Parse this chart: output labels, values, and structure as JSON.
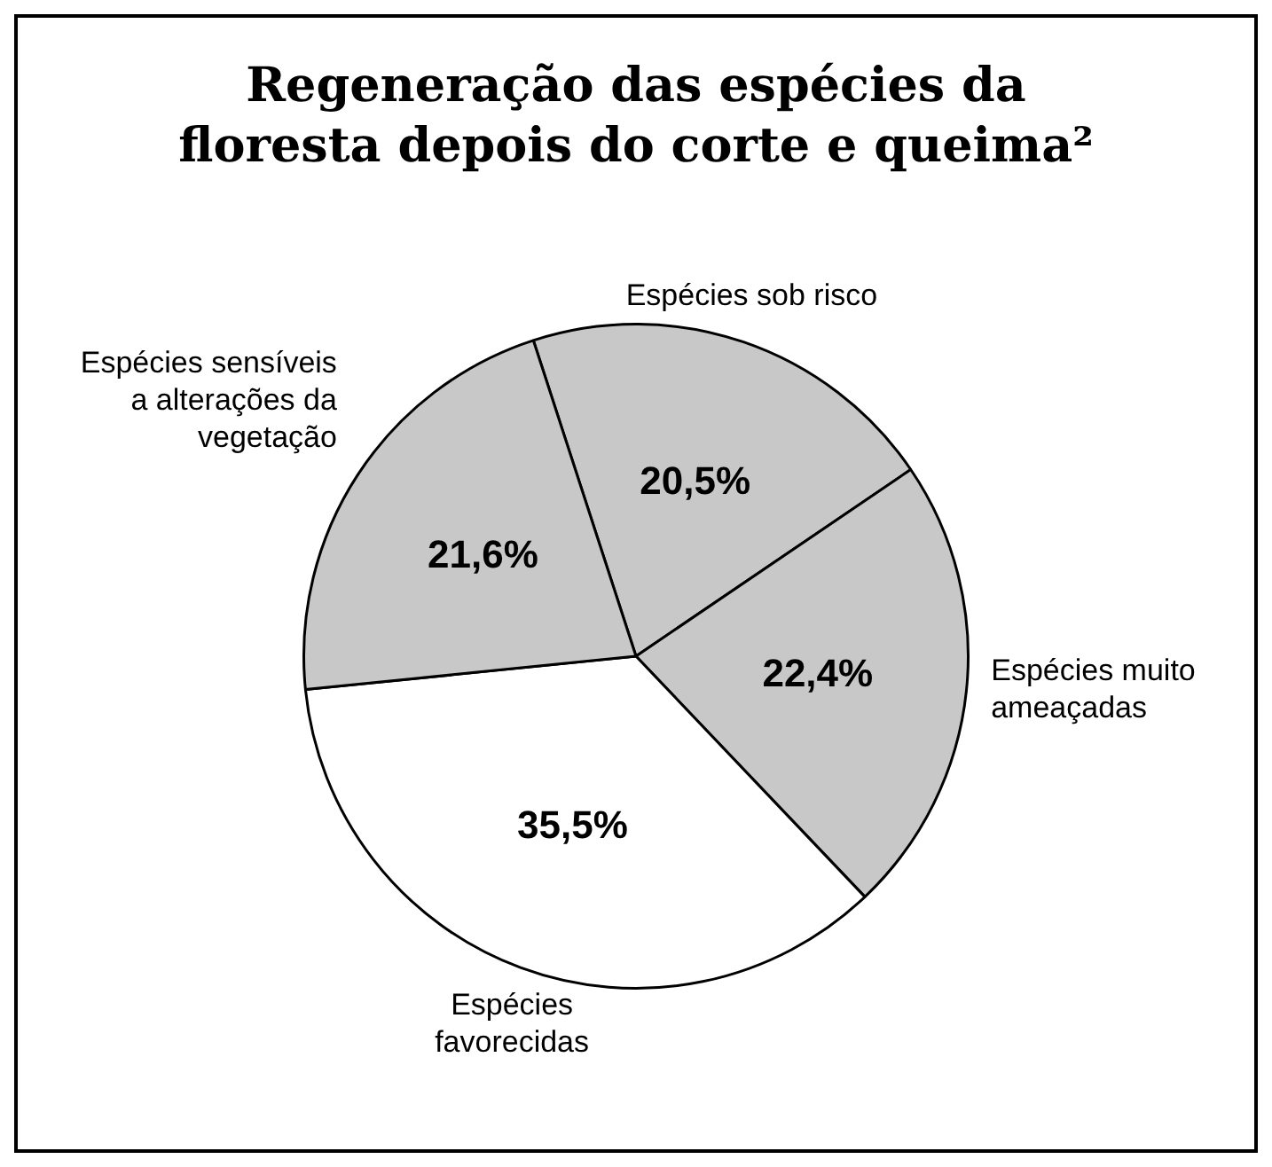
{
  "chart_data": {
    "type": "pie",
    "title": "Regeneração das espécies da floresta depois do corte e queima²",
    "categories": [
      "Espécies sob risco",
      "Espécies muito ameaçadas",
      "Espécies favorecidas",
      "Espécies sensíveis a alterações da vegetação"
    ],
    "values": [
      20.5,
      22.4,
      35.5,
      21.6
    ],
    "colors": [
      "#c8c8c8",
      "#c8c8c8",
      "#ffffff",
      "#c8c8c8"
    ],
    "value_labels": [
      "20,5%",
      "22,4%",
      "35,5%",
      "21,6%"
    ],
    "legend": false
  }
}
